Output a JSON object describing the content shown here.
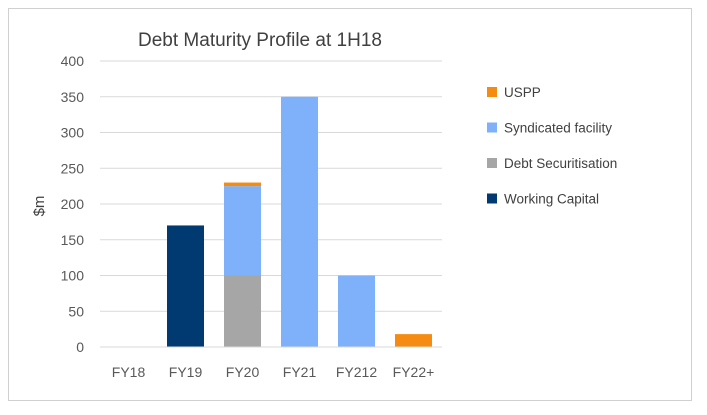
{
  "chart_data": {
    "type": "bar",
    "stacked": true,
    "title": "Debt Maturity Profile at 1H18",
    "xlabel": "",
    "ylabel": "$m",
    "ylim": [
      0,
      400
    ],
    "yticks": [
      0,
      50,
      100,
      150,
      200,
      250,
      300,
      350,
      400
    ],
    "grid": true,
    "legend_position": "right",
    "categories": [
      "FY18",
      "FY19",
      "FY20",
      "FY21",
      "FY212",
      "FY22+"
    ],
    "series": [
      {
        "name": "Working Capital",
        "color": "#003a70",
        "values": [
          0,
          170,
          0,
          0,
          0,
          0
        ]
      },
      {
        "name": "Debt Securitisation",
        "color": "#a6a6a6",
        "values": [
          0,
          0,
          100,
          0,
          0,
          0
        ]
      },
      {
        "name": "Syndicated facility",
        "color": "#7eb1fa",
        "values": [
          0,
          0,
          125,
          350,
          100,
          0
        ]
      },
      {
        "name": "USPP",
        "color": "#f58b10",
        "values": [
          0,
          0,
          5,
          0,
          0,
          18
        ]
      }
    ],
    "legend_order": [
      "USPP",
      "Syndicated facility",
      "Debt Securitisation",
      "Working Capital"
    ]
  }
}
